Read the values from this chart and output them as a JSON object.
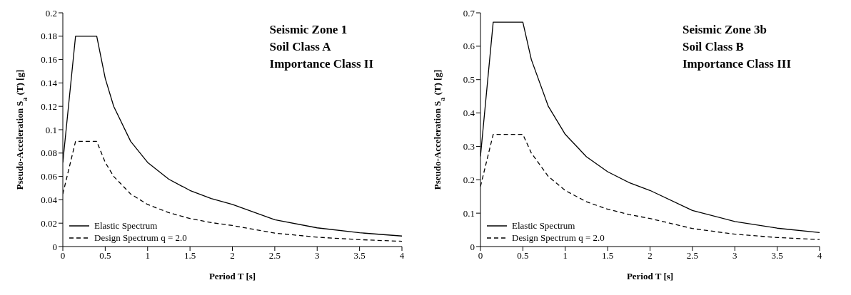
{
  "chart_data": [
    {
      "type": "line",
      "xlabel": "Period T [s]",
      "ylabel": "Pseudo-Acceleration S$_{a}$ (T) [g]",
      "annotations": [
        "Seismic Zone 1",
        "Soil Class A",
        "Importance Class II"
      ],
      "xlim": [
        0,
        4
      ],
      "xticks": [
        0,
        0.5,
        1,
        1.5,
        2,
        2.5,
        3,
        3.5,
        4
      ],
      "ylim": [
        0,
        0.2
      ],
      "yticks": [
        0,
        0.02,
        0.04,
        0.06,
        0.08,
        0.1,
        0.12,
        0.14,
        0.16,
        0.18,
        0.2
      ],
      "grid": false,
      "legend": "bottom left",
      "marker": "none",
      "series": [
        {
          "name": "Elastic Spectrum",
          "color": "#000000",
          "line_style": "solid",
          "x": [
            0,
            0.15,
            0.4,
            0.5,
            0.6,
            0.8,
            1,
            1.25,
            1.5,
            1.75,
            2,
            2.5,
            3,
            3.5,
            4
          ],
          "values": [
            0.072,
            0.18,
            0.18,
            0.144,
            0.12,
            0.09,
            0.072,
            0.0576,
            0.048,
            0.0411,
            0.036,
            0.023,
            0.016,
            0.0118,
            0.009
          ]
        },
        {
          "name": "Design Spectrum q = 2.0",
          "color": "#000000",
          "line_style": "dashed",
          "x": [
            0,
            0.15,
            0.4,
            0.5,
            0.6,
            0.8,
            1,
            1.25,
            1.5,
            1.75,
            2,
            2.5,
            3,
            3.5,
            4
          ],
          "values": [
            0.045,
            0.09,
            0.09,
            0.072,
            0.06,
            0.045,
            0.036,
            0.029,
            0.024,
            0.0205,
            0.018,
            0.0115,
            0.008,
            0.0059,
            0.0045
          ]
        }
      ]
    },
    {
      "type": "line",
      "xlabel": "Period T [s]",
      "ylabel": "Pseudo-Acceleration S$_{a}$ (T) [g]",
      "annotations": [
        "Seismic Zone 3b",
        "Soil Class B",
        "Importance Class III"
      ],
      "xlim": [
        0,
        4
      ],
      "xticks": [
        0,
        0.5,
        1,
        1.5,
        2,
        2.5,
        3,
        3.5,
        4
      ],
      "ylim": [
        0,
        0.7
      ],
      "yticks": [
        0,
        0.1,
        0.2,
        0.3,
        0.4,
        0.5,
        0.6,
        0.7
      ],
      "grid": false,
      "legend": "bottom left",
      "marker": "none",
      "series": [
        {
          "name": "Elastic Spectrum",
          "color": "#000000",
          "line_style": "solid",
          "x": [
            0,
            0.15,
            0.5,
            0.6,
            0.8,
            1,
            1.25,
            1.5,
            1.75,
            2,
            2.5,
            3,
            3.5,
            4
          ],
          "values": [
            0.27,
            0.672,
            0.672,
            0.56,
            0.42,
            0.336,
            0.269,
            0.224,
            0.192,
            0.168,
            0.108,
            0.075,
            0.055,
            0.042
          ]
        },
        {
          "name": "Design Spectrum q = 2.0",
          "color": "#000000",
          "line_style": "dashed",
          "x": [
            0,
            0.15,
            0.5,
            0.6,
            0.8,
            1,
            1.25,
            1.5,
            1.75,
            2,
            2.5,
            3,
            3.5,
            4
          ],
          "values": [
            0.18,
            0.336,
            0.336,
            0.28,
            0.21,
            0.168,
            0.134,
            0.112,
            0.096,
            0.084,
            0.054,
            0.037,
            0.027,
            0.021
          ]
        }
      ]
    }
  ]
}
